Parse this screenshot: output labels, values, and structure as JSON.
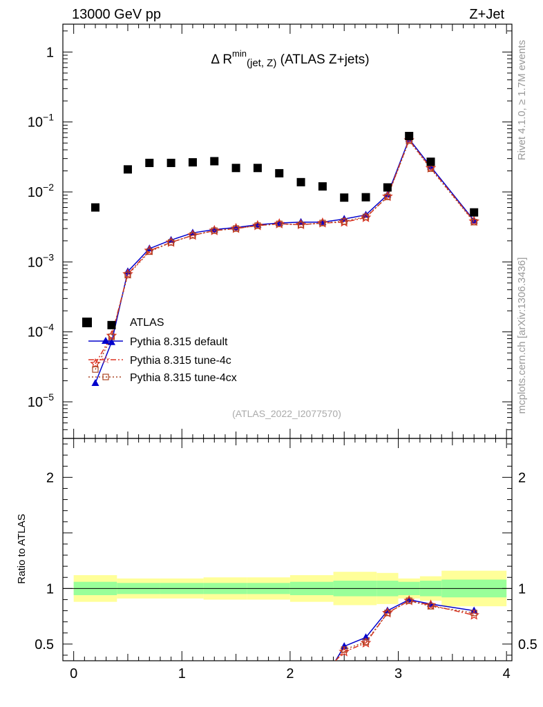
{
  "header": {
    "left": "13000 GeV pp",
    "right": "Z+Jet"
  },
  "side_labels": {
    "rivet": "Rivet 4.1.0, ≥ 1.7M events",
    "mcplots": "mcplots.cern.ch [arXiv:1306.3436]"
  },
  "colors": {
    "data": "#000000",
    "default": "#0000cc",
    "tune4c": "#dd3322",
    "tune4cx": "#aa4422",
    "band_inner": "#99ff99",
    "band_outer": "#ffff99"
  },
  "chart_data": {
    "type": "scatter",
    "title": {
      "prefix": "Δ R",
      "sup": "min",
      "sub": "(jet, Z)",
      "suffix": " (ATLAS Z+jets)"
    },
    "watermark": "(ATLAS_2022_I2077570)",
    "xlim": [
      -0.1,
      4.05
    ],
    "main": {
      "yscale": "log",
      "ylim": [
        3e-06,
        2.5
      ],
      "ytick_labels": [
        {
          "v": 1,
          "base": "1",
          "exp": ""
        },
        {
          "v": 0.1,
          "base": "10",
          "exp": "−1"
        },
        {
          "v": 0.01,
          "base": "10",
          "exp": "−2"
        },
        {
          "v": 0.001,
          "base": "10",
          "exp": "−3"
        },
        {
          "v": 0.0001,
          "base": "10",
          "exp": "−4"
        },
        {
          "v": 1e-05,
          "base": "10",
          "exp": "−5"
        }
      ]
    },
    "ratio": {
      "ylabel": "Ratio to ATLAS",
      "ylim": [
        0.35,
        2.35
      ],
      "ytick_labels": [
        {
          "v": 0.5,
          "label": "0.5"
        },
        {
          "v": 1,
          "label": "1"
        },
        {
          "v": 2,
          "label": "2"
        }
      ]
    },
    "xtick_labels": [
      {
        "v": 0,
        "label": "0"
      },
      {
        "v": 1,
        "label": "1"
      },
      {
        "v": 2,
        "label": "2"
      },
      {
        "v": 3,
        "label": "3"
      },
      {
        "v": 4,
        "label": "4"
      }
    ],
    "legend": [
      "ATLAS",
      "Pythia 8.315 default",
      "Pythia 8.315 tune-4c",
      "Pythia 8.315 tune-4cx"
    ],
    "data": {
      "name": "ATLAS",
      "x": [
        0.2,
        0.35,
        0.5,
        0.7,
        0.9,
        1.1,
        1.3,
        1.5,
        1.7,
        1.9,
        2.1,
        2.3,
        2.5,
        2.7,
        2.9,
        3.1,
        3.3,
        3.7
      ],
      "y": [
        0.006,
        0.000125,
        0.021,
        0.026,
        0.026,
        0.0265,
        0.0275,
        0.022,
        0.022,
        0.0185,
        0.0138,
        0.012,
        0.0083,
        0.0084,
        0.0116,
        0.063,
        0.027,
        0.0051
      ]
    },
    "series": [
      {
        "name": "Pythia 8.315 default",
        "style": "solid",
        "marker": "triangle",
        "x": [
          0.2,
          0.35,
          0.5,
          0.7,
          0.9,
          1.1,
          1.3,
          1.5,
          1.7,
          1.9,
          2.1,
          2.3,
          2.5,
          2.7,
          2.9,
          3.1,
          3.3,
          3.7
        ],
        "y": [
          1.85e-05,
          7.1e-05,
          0.00073,
          0.00155,
          0.00205,
          0.0026,
          0.0029,
          0.0031,
          0.0034,
          0.0036,
          0.0037,
          0.0037,
          0.0041,
          0.0047,
          0.0091,
          0.057,
          0.023,
          0.0039
        ]
      },
      {
        "name": "Pythia 8.315 tune-4c",
        "style": "dashdot",
        "marker": "star",
        "x": [
          0.2,
          0.35,
          0.5,
          0.7,
          0.9,
          1.1,
          1.3,
          1.5,
          1.7,
          1.9,
          2.1,
          2.3,
          2.5,
          2.7,
          2.9,
          3.1,
          3.3,
          3.7
        ],
        "y": [
          3.5e-05,
          8.8e-05,
          0.00067,
          0.00145,
          0.0019,
          0.0024,
          0.0028,
          0.003,
          0.0033,
          0.0035,
          0.0034,
          0.0036,
          0.0037,
          0.0043,
          0.0086,
          0.055,
          0.022,
          0.0038
        ]
      },
      {
        "name": "Pythia 8.315 tune-4cx",
        "style": "dotted",
        "marker": "square-open",
        "x": [
          0.2,
          0.35,
          0.5,
          0.7,
          0.9,
          1.1,
          1.3,
          1.5,
          1.7,
          1.9,
          2.1,
          2.3,
          2.5,
          2.7,
          2.9,
          3.1,
          3.3,
          3.7
        ],
        "y": [
          2.9e-05,
          8.5e-05,
          0.00065,
          0.0014,
          0.0019,
          0.0024,
          0.0028,
          0.003,
          0.0033,
          0.0035,
          0.0034,
          0.0036,
          0.0038,
          0.0044,
          0.0085,
          0.054,
          0.0215,
          0.0037
        ]
      }
    ],
    "ratio_series": [
      {
        "name": "Pythia 8.315 default",
        "x": [
          2.42,
          2.5,
          2.7,
          2.9,
          3.1,
          3.3,
          3.7
        ],
        "y": [
          0.35,
          0.48,
          0.56,
          0.8,
          0.9,
          0.86,
          0.8
        ]
      },
      {
        "name": "Pythia 8.315 tune-4c",
        "x": [
          2.42,
          2.5,
          2.7,
          2.9,
          3.1,
          3.3,
          3.7
        ],
        "y": [
          0.35,
          0.43,
          0.51,
          0.78,
          0.89,
          0.85,
          0.76
        ]
      },
      {
        "name": "Pythia 8.315 tune-4cx",
        "x": [
          2.42,
          2.5,
          2.7,
          2.9,
          3.1,
          3.3,
          3.7
        ],
        "y": [
          0.35,
          0.45,
          0.52,
          0.78,
          0.89,
          0.84,
          0.78
        ]
      }
    ],
    "bands": [
      {
        "x0": 0.0,
        "x1": 0.4,
        "inner": [
          0.94,
          1.06
        ],
        "outer": [
          0.88,
          1.12
        ]
      },
      {
        "x0": 0.4,
        "x1": 0.8,
        "inner": [
          0.95,
          1.05
        ],
        "outer": [
          0.91,
          1.09
        ]
      },
      {
        "x0": 0.8,
        "x1": 1.2,
        "inner": [
          0.95,
          1.05
        ],
        "outer": [
          0.91,
          1.09
        ]
      },
      {
        "x0": 1.2,
        "x1": 1.6,
        "inner": [
          0.95,
          1.05
        ],
        "outer": [
          0.9,
          1.1
        ]
      },
      {
        "x0": 1.6,
        "x1": 2.0,
        "inner": [
          0.95,
          1.05
        ],
        "outer": [
          0.9,
          1.1
        ]
      },
      {
        "x0": 2.0,
        "x1": 2.4,
        "inner": [
          0.94,
          1.06
        ],
        "outer": [
          0.88,
          1.12
        ]
      },
      {
        "x0": 2.4,
        "x1": 2.8,
        "inner": [
          0.93,
          1.07
        ],
        "outer": [
          0.85,
          1.15
        ]
      },
      {
        "x0": 2.8,
        "x1": 3.0,
        "inner": [
          0.93,
          1.07
        ],
        "outer": [
          0.86,
          1.14
        ]
      },
      {
        "x0": 3.0,
        "x1": 3.2,
        "inner": [
          0.94,
          1.06
        ],
        "outer": [
          0.91,
          1.09
        ]
      },
      {
        "x0": 3.2,
        "x1": 3.4,
        "inner": [
          0.93,
          1.07
        ],
        "outer": [
          0.89,
          1.11
        ]
      },
      {
        "x0": 3.4,
        "x1": 4.0,
        "inner": [
          0.92,
          1.08
        ],
        "outer": [
          0.84,
          1.16
        ]
      }
    ]
  }
}
